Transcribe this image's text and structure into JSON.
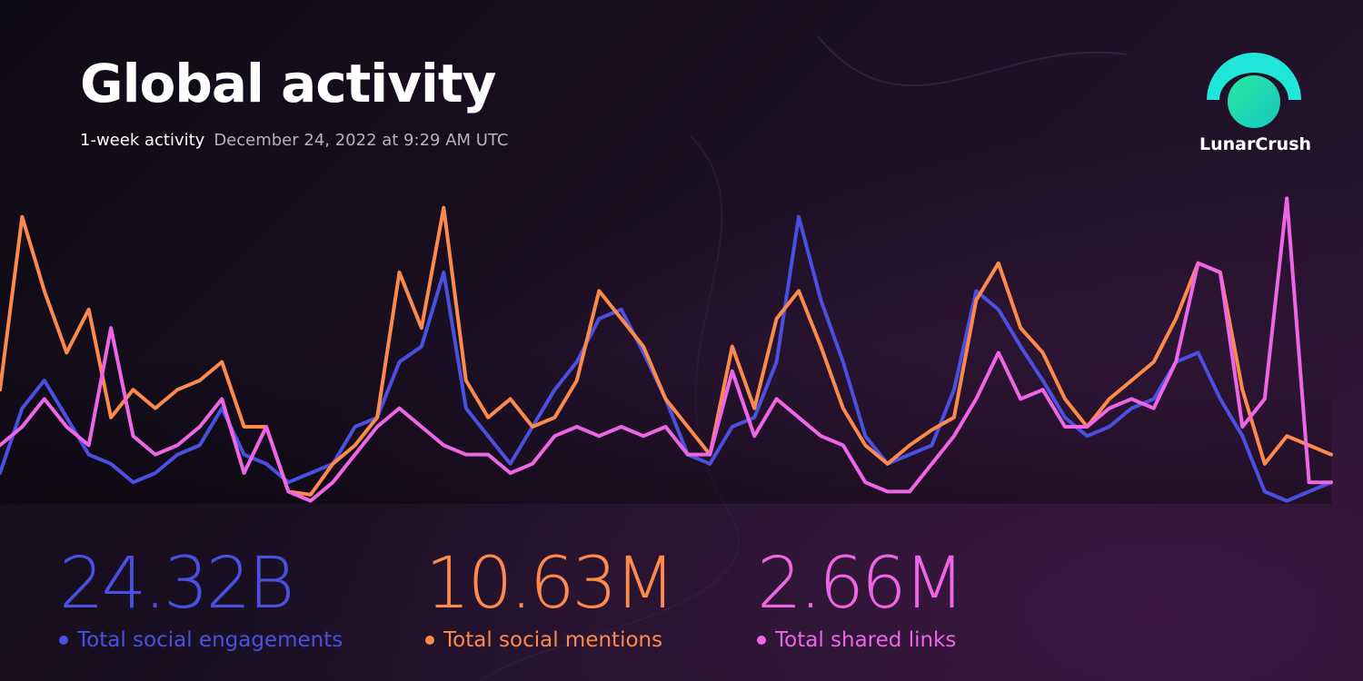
{
  "header": {
    "title": "Global activity",
    "subtitle": "1-week activity",
    "timestamp": "December 24, 2022 at 9:29 AM UTC"
  },
  "brand": "LunarCrush",
  "chart_data": {
    "type": "line",
    "ylim": [
      0,
      100
    ],
    "series": [
      {
        "name": "Total social engagements",
        "color": "#4a50e0",
        "values": [
          10,
          31,
          40,
          28,
          16,
          13,
          7,
          10,
          16,
          19,
          31,
          16,
          13,
          7,
          10,
          13,
          25,
          28,
          46,
          51,
          75,
          31,
          22,
          13,
          25,
          37,
          46,
          60,
          63,
          49,
          34,
          16,
          13,
          25,
          28,
          46,
          93,
          66,
          46,
          22,
          13,
          16,
          19,
          37,
          69,
          63,
          51,
          40,
          28,
          22,
          25,
          31,
          34,
          46,
          49,
          34,
          22,
          4,
          1,
          4,
          7
        ]
      },
      {
        "name": "Total social mentions",
        "color": "#fb8a4c",
        "values": [
          37,
          93,
          69,
          49,
          63,
          28,
          37,
          31,
          37,
          40,
          46,
          25,
          25,
          4,
          3,
          13,
          19,
          28,
          75,
          57,
          96,
          40,
          28,
          34,
          25,
          28,
          40,
          69,
          60,
          51,
          34,
          25,
          16,
          51,
          31,
          60,
          69,
          51,
          31,
          19,
          13,
          19,
          24,
          28,
          66,
          78,
          57,
          49,
          34,
          25,
          34,
          40,
          46,
          60,
          78,
          75,
          37,
          13,
          22,
          19,
          16
        ]
      },
      {
        "name": "Total shared links",
        "color": "#ee66e6",
        "values": [
          19,
          25,
          34,
          25,
          19,
          57,
          22,
          16,
          19,
          25,
          34,
          10,
          25,
          4,
          1,
          7,
          16,
          25,
          31,
          25,
          19,
          16,
          16,
          10,
          13,
          22,
          25,
          22,
          25,
          22,
          25,
          16,
          16,
          43,
          22,
          34,
          28,
          22,
          19,
          7,
          4,
          4,
          13,
          22,
          34,
          49,
          34,
          37,
          25,
          25,
          31,
          34,
          31,
          46,
          78,
          75,
          25,
          34,
          99,
          7,
          7
        ]
      }
    ]
  },
  "stats": [
    {
      "value": "24.32B",
      "label": "Total social engagements",
      "color": "#4a50e0"
    },
    {
      "value": "10.63M",
      "label": "Total social mentions",
      "color": "#fb8a4c"
    },
    {
      "value": "2.66M",
      "label": "Total shared links",
      "color": "#ee66e6"
    }
  ]
}
